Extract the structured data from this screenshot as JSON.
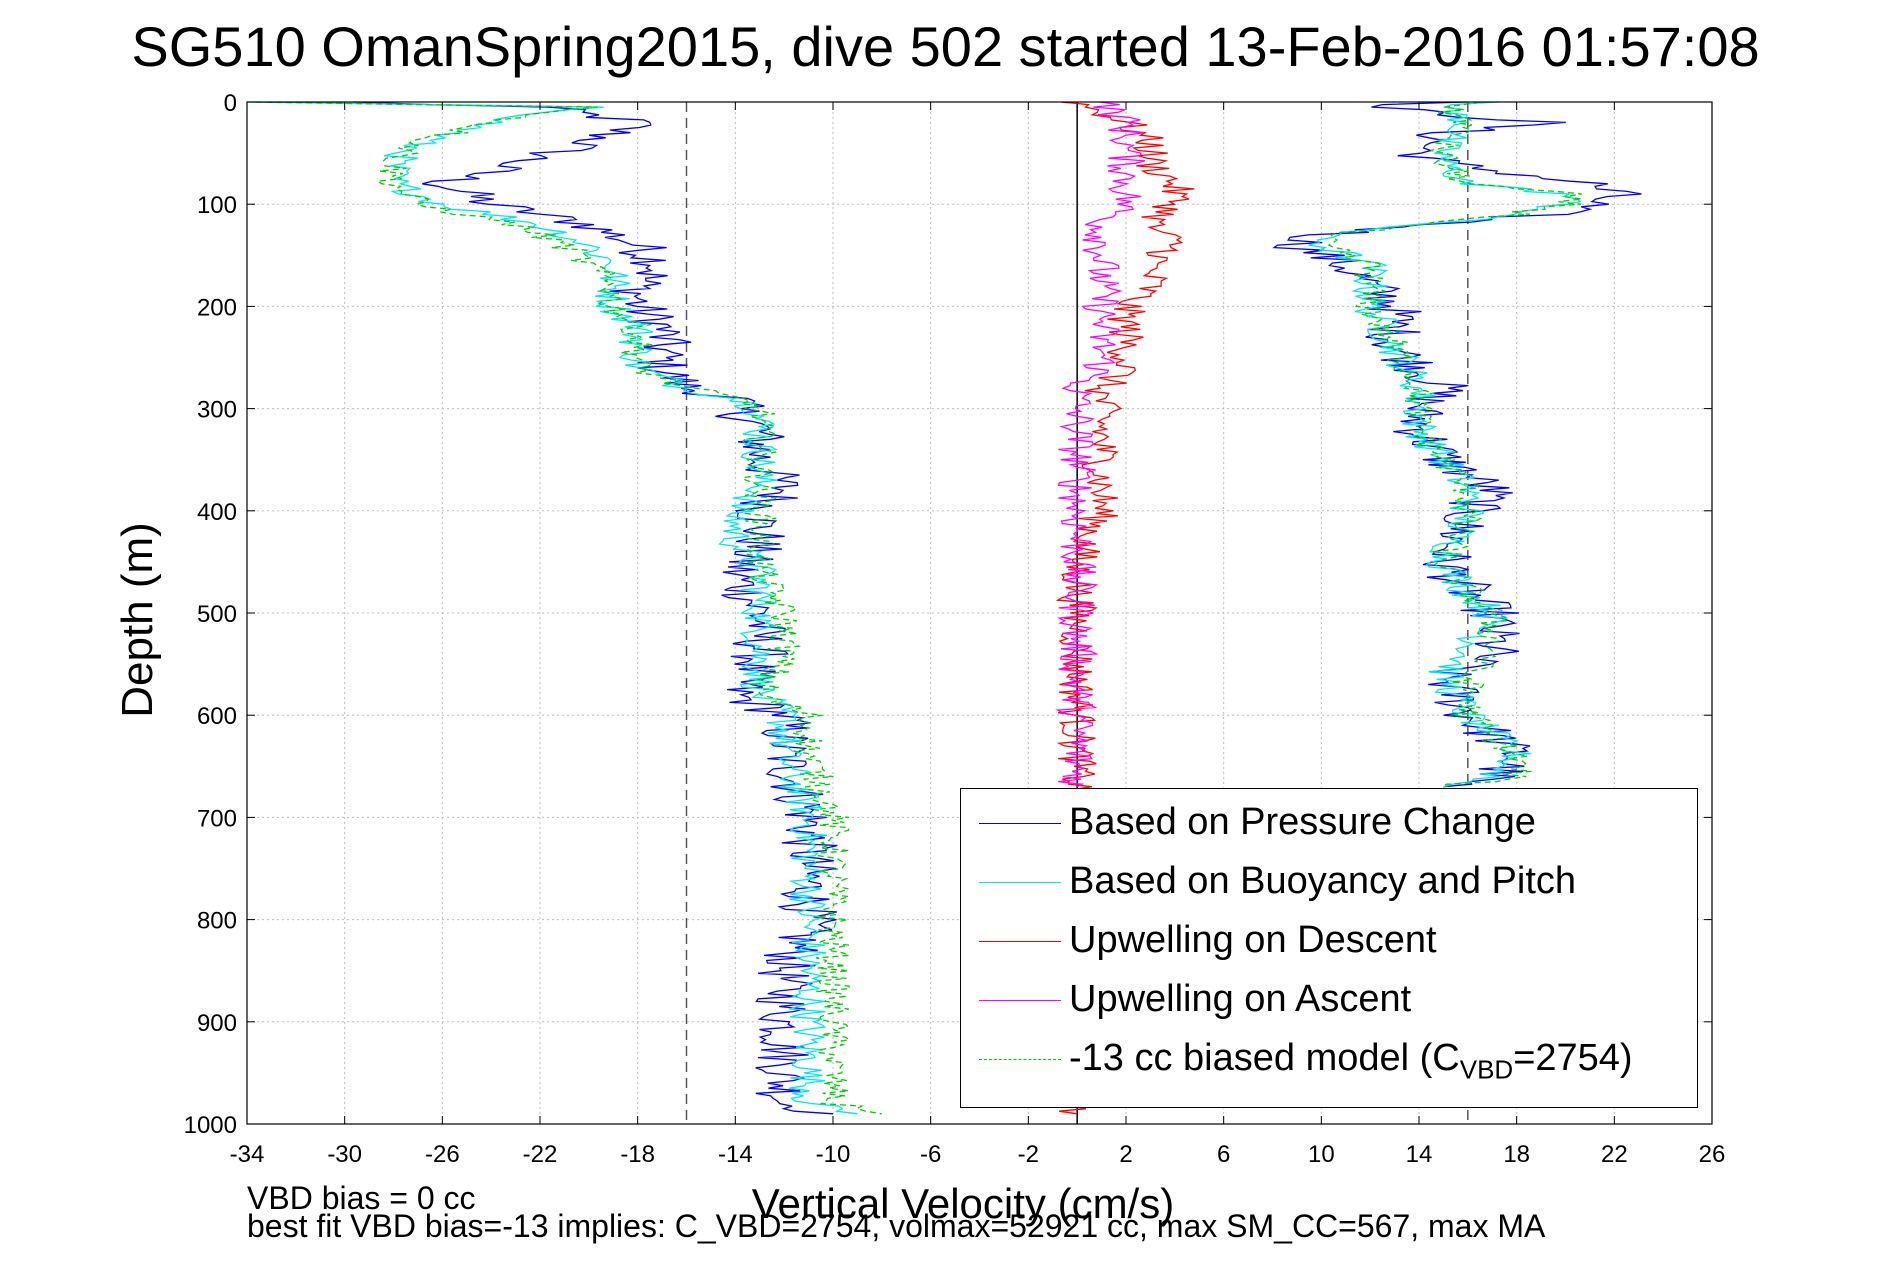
{
  "chart_data": {
    "type": "line",
    "title": "SG510 OmanSpring2015, dive 502 started 13-Feb-2016 01:57:08",
    "xlabel": "Vertical Velocity (cm/s)",
    "ylabel": "Depth (m)",
    "xlim": [
      -34,
      26
    ],
    "ylim": [
      0,
      1000
    ],
    "y_reversed": true,
    "grid": true,
    "legend_position": "bottom-right",
    "x_ticks": [
      "-34",
      "-30",
      "-26",
      "-22",
      "-18",
      "-14",
      "-10",
      "-6",
      "-2",
      "2",
      "6",
      "10",
      "14",
      "18",
      "22",
      "26"
    ],
    "y_ticks": [
      "0",
      "100",
      "200",
      "300",
      "400",
      "500",
      "600",
      "700",
      "800",
      "900",
      "1000"
    ],
    "reference_lines": {
      "dashed_x": [
        -16,
        16
      ],
      "solid_x": [
        0
      ]
    },
    "series": [
      {
        "name": "Based on Pressure Change",
        "color": "#0000ff",
        "noise": 1.2,
        "segments": [
          {
            "depth": [
              0,
              5,
              20,
              40,
              60,
              80,
              100,
              120,
              140,
              160,
              180,
              200,
              220,
              240,
              260,
              280,
              290,
              300,
              320,
              350,
              380,
              400,
              430,
              460,
              500,
              540,
              580,
              600,
              640,
              700,
              750,
              800,
              850,
              900,
              950,
              980,
              990
            ],
            "velocity": [
              -30,
              -22,
              -18,
              -20,
              -23,
              -26,
              -24,
              -20,
              -18,
              -17,
              -18,
              -18,
              -17,
              -17,
              -17,
              -16,
              -14,
              -14,
              -13,
              -13,
              -12,
              -13,
              -13,
              -14,
              -13,
              -13,
              -14,
              -12,
              -12,
              -11,
              -11,
              -11,
              -12,
              -12,
              -12,
              -12,
              -10
            ]
          },
          {
            "depth": [
              0,
              5,
              20,
              30,
              50,
              60,
              80,
              90,
              100,
              110,
              130,
              140,
              160,
              180,
              200,
              240,
              280,
              300,
              320,
              350,
              380,
              400,
              450,
              480,
              500,
              540,
              560,
              600,
              620,
              640,
              660,
              670
            ],
            "velocity": [
              15,
              12,
              19,
              15,
              14,
              15,
              21,
              22,
              21,
              19,
              10,
              9,
              11,
              12,
              13,
              13,
              15,
              14,
              14,
              15,
              17,
              16,
              15,
              16,
              17,
              17,
              15,
              16,
              17,
              18,
              17,
              15
            ]
          }
        ]
      },
      {
        "name": "Based on Buoyancy and Pitch",
        "color": "#00e5ee",
        "noise": 0.8,
        "segments": [
          {
            "depth": [
              0,
              5,
              20,
              40,
              60,
              80,
              100,
              120,
              140,
              160,
              180,
              200,
              220,
              240,
              260,
              280,
              290,
              300,
              320,
              350,
              380,
              400,
              430,
              460,
              500,
              540,
              580,
              600,
              640,
              700,
              750,
              800,
              850,
              900,
              950,
              980,
              990
            ],
            "velocity": [
              -34,
              -20,
              -24,
              -27,
              -28,
              -28,
              -26,
              -22,
              -20,
              -19,
              -19,
              -19,
              -18,
              -18,
              -18,
              -16,
              -14,
              -13,
              -13,
              -13,
              -13,
              -14,
              -14,
              -13,
              -13,
              -13,
              -13,
              -12,
              -12,
              -11,
              -11,
              -11,
              -11,
              -11,
              -11,
              -11,
              -9
            ]
          },
          {
            "depth": [
              0,
              5,
              20,
              40,
              60,
              80,
              90,
              100,
              110,
              130,
              140,
              160,
              180,
              200,
              240,
              280,
              300,
              320,
              350,
              380,
              400,
              450,
              480,
              500,
              540,
              560,
              600,
              620,
              640,
              660,
              670
            ],
            "velocity": [
              17,
              15,
              16,
              15,
              15,
              16,
              20,
              20,
              18,
              10,
              10,
              12,
              12,
              12,
              13,
              14,
              14,
              14,
              15,
              16,
              16,
              15,
              16,
              17,
              16,
              15,
              16,
              17,
              18,
              17,
              15
            ]
          }
        ]
      },
      {
        "name": "Upwelling on Descent",
        "color": "#ff0000",
        "noise": 0.8,
        "segments": [
          {
            "depth": [
              0,
              20,
              40,
              60,
              80,
              100,
              120,
              140,
              160,
              180,
              200,
              220,
              240,
              260,
              280,
              300,
              320,
              350,
              400,
              450,
              500,
              550,
              600,
              640,
              670,
              990
            ],
            "velocity": [
              0,
              2,
              3,
              3,
              4,
              4,
              3,
              4,
              3,
              3,
              2,
              2,
              2,
              2,
              1,
              1,
              1,
              1,
              1,
              0,
              0,
              0,
              0,
              0,
              0,
              0
            ]
          }
        ]
      },
      {
        "name": "Upwelling on Ascent",
        "color": "#ff00ff",
        "noise": 0.8,
        "segments": [
          {
            "depth": [
              0,
              20,
              40,
              60,
              80,
              100,
              120,
              140,
              160,
              180,
              200,
              220,
              240,
              260,
              280,
              300,
              320,
              350,
              400,
              450,
              500,
              550,
              600,
              640,
              670
            ],
            "velocity": [
              1,
              2,
              2,
              2,
              2,
              2,
              1,
              1,
              1,
              1,
              1,
              1,
              1,
              1,
              0,
              0,
              0,
              0,
              0,
              0,
              0,
              0,
              0,
              0,
              0
            ]
          }
        ]
      },
      {
        "name": "-13 cc biased model (C_VBD=2754)",
        "color": "#00cc00",
        "dashed": true,
        "noise": 0.7,
        "segments": [
          {
            "depth": [
              0,
              5,
              20,
              40,
              60,
              80,
              100,
              120,
              140,
              160,
              180,
              200,
              220,
              240,
              260,
              280,
              290,
              300,
              320,
              350,
              380,
              400,
              430,
              460,
              500,
              540,
              580,
              600,
              640,
              700,
              750,
              800,
              850,
              900,
              950,
              980,
              990
            ],
            "velocity": [
              -34,
              -20,
              -24,
              -27,
              -28,
              -28,
              -27,
              -23,
              -21,
              -20,
              -19,
              -19,
              -18,
              -18,
              -18,
              -16,
              -14,
              -13,
              -13,
              -13,
              -13,
              -13,
              -13,
              -13,
              -12,
              -12,
              -13,
              -11,
              -11,
              -10,
              -10,
              -10,
              -10,
              -10,
              -10,
              -10,
              -8
            ]
          },
          {
            "depth": [
              0,
              5,
              20,
              40,
              60,
              80,
              90,
              100,
              110,
              130,
              140,
              160,
              180,
              200,
              240,
              280,
              300,
              320,
              350,
              380,
              400,
              450,
              480,
              500,
              540,
              560,
              600,
              620,
              640,
              660,
              670
            ],
            "velocity": [
              17,
              15,
              16,
              15,
              15,
              16,
              20,
              20,
              18,
              10,
              10,
              12,
              12,
              12,
              13,
              14,
              14,
              14,
              15,
              16,
              16,
              15,
              16,
              17,
              17,
              16,
              16,
              17,
              18,
              18,
              15
            ]
          }
        ]
      }
    ]
  },
  "legend": {
    "items": [
      {
        "label": "Based on Pressure Change"
      },
      {
        "label": "Based on Buoyancy and Pitch"
      },
      {
        "label": "Upwelling on Descent"
      },
      {
        "label": "Upwelling on Ascent"
      },
      {
        "label_prefix": "-13 cc biased model (C",
        "label_sub": "VBD",
        "label_suffix": "=2754)"
      }
    ]
  },
  "notes": {
    "line1": "VBD bias = 0 cc",
    "line2": "best fit VBD bias=-13 implies: C_VBD=2754, volmax=52921 cc, max SM_CC=567, max MA"
  }
}
